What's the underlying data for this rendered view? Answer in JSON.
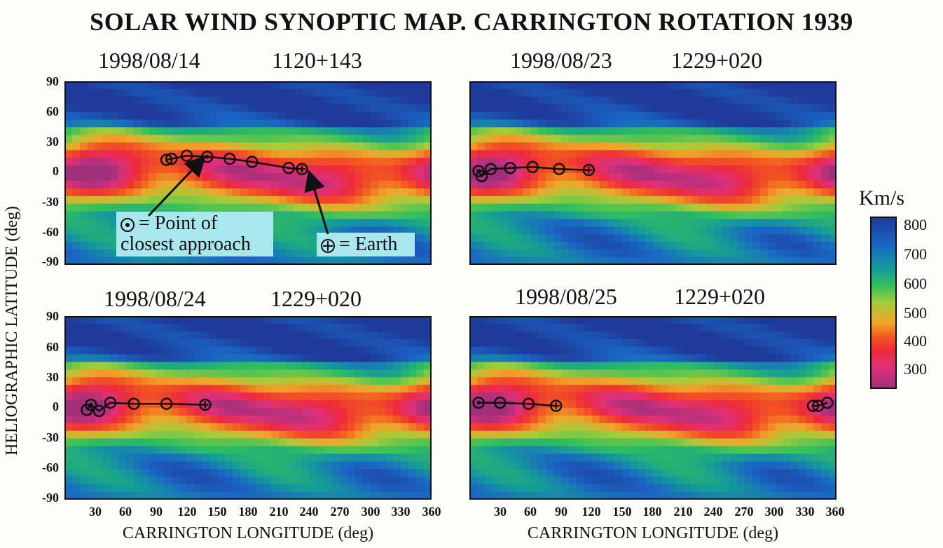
{
  "title": "SOLAR WIND SYNOPTIC MAP.  CARRINGTON ROTATION 1939",
  "colors": {
    "ramp": [
      "#1f3a9a",
      "#1a66c4",
      "#159a9a",
      "#33c05a",
      "#a5cc3a",
      "#f0a52a",
      "#f25a20",
      "#ee2a3a",
      "#e0307a",
      "#a0307a"
    ],
    "legend_bg": "#a9e7ef",
    "track": "#111111"
  },
  "colorbar": {
    "title": "Km/s",
    "labels": [
      "800",
      "700",
      "600",
      "500",
      "400",
      "300"
    ]
  },
  "axes": {
    "ylabel": "HELIOGRAPHIC LATITUDE (deg)",
    "xlabel": "CARRINGTON LONGITUDE (deg)",
    "yticks": [
      "90",
      "60",
      "30",
      "0",
      "-30",
      "-60",
      "-90"
    ],
    "xticks": [
      "30",
      "60",
      "90",
      "120",
      "150",
      "180",
      "210",
      "240",
      "270",
      "300",
      "330",
      "360"
    ]
  },
  "legend": {
    "closest": "= Point of closest approach",
    "earth": "= Earth"
  },
  "chart_data": [
    {
      "type": "heatmap",
      "date": "1998/08/14",
      "code": "1120+143",
      "xlim": [
        0,
        360
      ],
      "ylim": [
        -90,
        90
      ],
      "track": [
        [
          100,
          13
        ],
        [
          105,
          14
        ],
        [
          120,
          17
        ],
        [
          140,
          16
        ],
        [
          162,
          14
        ],
        [
          184,
          11
        ],
        [
          220,
          5
        ],
        [
          233,
          4
        ]
      ],
      "closest_approach": [
        140,
        16
      ],
      "earth": [
        233,
        4
      ]
    },
    {
      "type": "heatmap",
      "date": "1998/08/23",
      "code": "1229+020",
      "xlim": [
        0,
        360
      ],
      "ylim": [
        -90,
        90
      ],
      "track": [
        [
          9,
          2
        ],
        [
          12,
          -3
        ],
        [
          21,
          4
        ],
        [
          40,
          5
        ],
        [
          62,
          6
        ],
        [
          88,
          4
        ],
        [
          117,
          3
        ]
      ],
      "closest_approach": [
        9,
        2
      ],
      "earth": [
        117,
        3
      ]
    },
    {
      "type": "heatmap",
      "date": "1998/08/24",
      "code": "1229+020",
      "xlim": [
        0,
        360
      ],
      "ylim": [
        -90,
        90
      ],
      "track": [
        [
          22,
          -2
        ],
        [
          26,
          3
        ],
        [
          34,
          -3
        ],
        [
          45,
          5
        ],
        [
          68,
          4
        ],
        [
          100,
          4
        ],
        [
          138,
          3
        ]
      ],
      "closest_approach": [
        26,
        3
      ],
      "earth": [
        138,
        3
      ]
    },
    {
      "type": "heatmap",
      "date": "1998/08/25",
      "code": "1229+020",
      "xlim": [
        0,
        360
      ],
      "ylim": [
        -90,
        90
      ],
      "track": [
        [
          9,
          5
        ],
        [
          30,
          5
        ],
        [
          58,
          4
        ],
        [
          85,
          2
        ]
      ],
      "track2": [
        [
          337,
          2
        ],
        [
          342,
          2
        ],
        [
          351,
          5
        ]
      ],
      "closest_approach": [
        9,
        5
      ],
      "earth": [
        85,
        2
      ]
    }
  ]
}
